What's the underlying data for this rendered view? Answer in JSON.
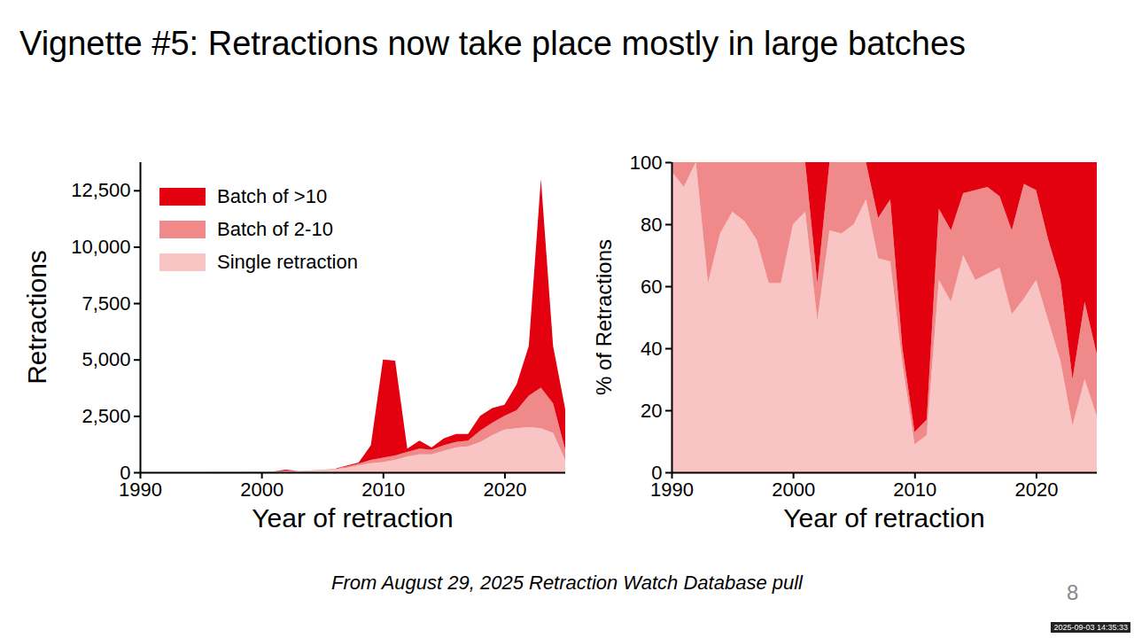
{
  "slide": {
    "title": "Vignette #5: Retractions now take place mostly in large batches",
    "caption": "From August 29, 2025 Retraction Watch Database pull",
    "page_number": "8",
    "timestamp": "2025-09-03 14:35:33"
  },
  "chart_data": [
    {
      "type": "area",
      "stacked": true,
      "legend": "top-left",
      "xlabel": "Year of retraction",
      "ylabel": "Retractions",
      "x": [
        1990,
        1991,
        1992,
        1993,
        1994,
        1995,
        1996,
        1997,
        1998,
        1999,
        2000,
        2001,
        2002,
        2003,
        2004,
        2005,
        2006,
        2007,
        2008,
        2009,
        2010,
        2011,
        2012,
        2013,
        2014,
        2015,
        2016,
        2017,
        2018,
        2019,
        2020,
        2021,
        2022,
        2023,
        2024,
        2025
      ],
      "xlim": [
        1990,
        2025
      ],
      "xticks": [
        1990,
        2000,
        2010,
        2020
      ],
      "ylim": [
        0,
        13750
      ],
      "yticks": [
        0,
        {
          "value": 2500,
          "label": "2,500"
        },
        {
          "value": 5000,
          "label": "5,000"
        },
        {
          "value": 7500,
          "label": "7,500"
        },
        {
          "value": 10000,
          "label": "10,000"
        },
        {
          "value": 12500,
          "label": "12,500"
        }
      ],
      "series": [
        {
          "name": "Batch of >10",
          "color": "#e3000f",
          "values": [
            0,
            0,
            0,
            0,
            0,
            0,
            0,
            0,
            0,
            0,
            0,
            0,
            60,
            0,
            0,
            0,
            0,
            30,
            50,
            650,
            4350,
            4200,
            150,
            350,
            100,
            300,
            350,
            300,
            650,
            650,
            500,
            1150,
            2200,
            9250,
            2550,
            1800
          ]
        },
        {
          "name": "Batch of 2-10",
          "color": "#f08a8a",
          "values": [
            0,
            0,
            0,
            3,
            2,
            2,
            3,
            5,
            8,
            10,
            5,
            5,
            10,
            10,
            15,
            20,
            20,
            60,
            80,
            150,
            200,
            200,
            200,
            250,
            200,
            250,
            250,
            250,
            500,
            550,
            600,
            800,
            1400,
            1800,
            1300,
            450
          ]
        },
        {
          "name": "Single retraction",
          "color": "#f8c4c4",
          "values": [
            5,
            5,
            5,
            8,
            10,
            10,
            12,
            15,
            15,
            20,
            25,
            35,
            45,
            45,
            60,
            90,
            140,
            200,
            300,
            400,
            450,
            550,
            700,
            800,
            800,
            950,
            1100,
            1150,
            1350,
            1650,
            1900,
            1950,
            2000,
            1950,
            1750,
            550
          ]
        }
      ]
    },
    {
      "type": "area",
      "stacked": true,
      "legend": "none",
      "xlabel": "Year of retraction",
      "ylabel": "% of Retractions",
      "x": [
        1990,
        1991,
        1992,
        1993,
        1994,
        1995,
        1996,
        1997,
        1998,
        1999,
        2000,
        2001,
        2002,
        2003,
        2004,
        2005,
        2006,
        2007,
        2008,
        2009,
        2010,
        2011,
        2012,
        2013,
        2014,
        2015,
        2016,
        2017,
        2018,
        2019,
        2020,
        2021,
        2022,
        2023,
        2024,
        2025
      ],
      "xlim": [
        1990,
        2025
      ],
      "xticks": [
        1990,
        2000,
        2010,
        2020
      ],
      "ylim": [
        0,
        100
      ],
      "yticks": [
        0,
        20,
        40,
        60,
        80,
        100
      ],
      "series": [
        {
          "name": "Batch of >10",
          "color": "#e3000f",
          "values": [
            0,
            0,
            0,
            0,
            0,
            0,
            0,
            0,
            0,
            0,
            0,
            0,
            39,
            0,
            0,
            0,
            0,
            18,
            12,
            60,
            87,
            83,
            15,
            22,
            10,
            9,
            8,
            11,
            22,
            7,
            9,
            25,
            38,
            70,
            45,
            62
          ]
        },
        {
          "name": "Batch of 2-10",
          "color": "#f08a8a",
          "values": [
            3,
            8,
            0,
            39,
            23,
            16,
            19,
            25,
            39,
            39,
            20,
            16,
            12,
            22,
            23,
            20,
            12,
            13,
            20,
            5,
            4,
            5,
            23,
            23,
            20,
            29,
            28,
            23,
            27,
            37,
            29,
            26,
            26,
            15,
            25,
            20
          ]
        },
        {
          "name": "Single retraction",
          "color": "#f8c4c4",
          "values": [
            97,
            92,
            100,
            61,
            77,
            84,
            81,
            75,
            61,
            61,
            80,
            84,
            49,
            78,
            77,
            80,
            88,
            69,
            68,
            35,
            9,
            12,
            62,
            55,
            70,
            62,
            64,
            66,
            51,
            56,
            62,
            49,
            36,
            15,
            30,
            18
          ]
        }
      ]
    }
  ]
}
